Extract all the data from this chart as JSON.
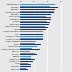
{
  "categories": [
    "Switzerland",
    "Norway",
    "Sweden",
    "United States",
    "Canada",
    "Euro area",
    "Australia",
    "Britain",
    "Denmark",
    "New Zealand",
    "Japan",
    "Czech Republic",
    "UAE",
    "Saudi Arabia",
    "South Korea",
    "New Taiwan",
    "Brazil",
    "Hong Kong",
    "Czech Republic2",
    "Mexico",
    "Turkey",
    "Russia",
    "Argentina",
    "Indonesia",
    "India",
    "Ukraine",
    "Pakistan"
  ],
  "values_dark": [
    6.72,
    5.65,
    5.23,
    5.06,
    4.63,
    4.56,
    4.53,
    4.37,
    4.32,
    4.19,
    3.86,
    3.45,
    3.44,
    3.31,
    3.31,
    3.17,
    3.12,
    2.98,
    2.89,
    2.55,
    2.54,
    2.19,
    2.11,
    1.89,
    1.63,
    1.58,
    1.1
  ],
  "values_light": [
    5.2,
    4.43,
    4.1,
    5.06,
    4.13,
    3.82,
    3.84,
    3.94,
    3.35,
    3.65,
    3.41,
    3.3,
    2.47,
    3.31,
    3.31,
    2.27,
    2.16,
    2.5,
    1.72,
    1.36,
    2.19,
    1.54,
    1.63,
    1.89,
    1.1,
    1.2,
    0.8
  ],
  "bar_color_dark": "#1f3a6e",
  "bar_color_light": "#5b8db8",
  "background_color": "#e8e8e8",
  "right_col_dark": "#1f3a6e",
  "right_col_light": "#5b8db8"
}
